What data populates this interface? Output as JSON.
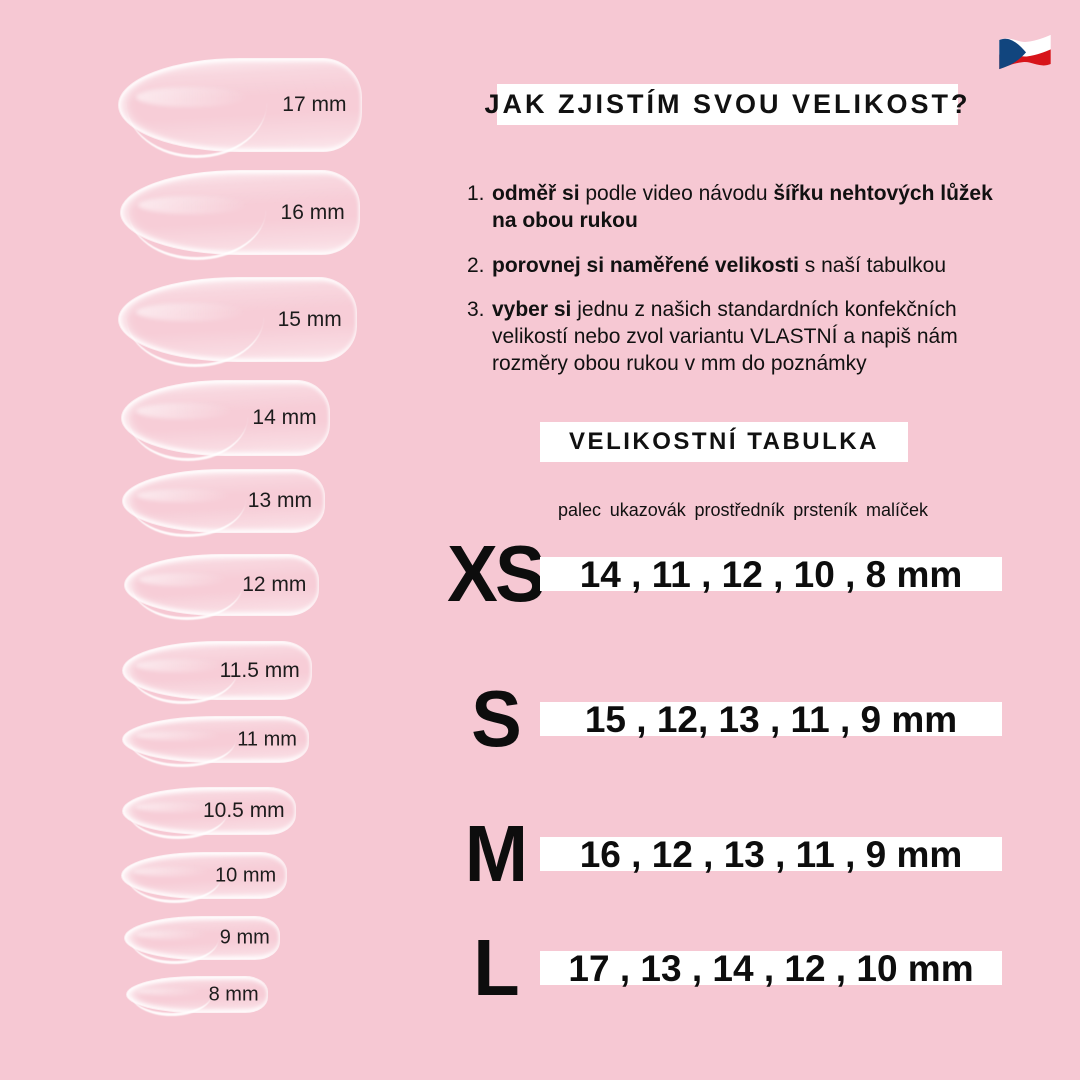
{
  "page": {
    "background_color": "#f6c8d3",
    "text_color": "#111111",
    "box_color": "#ffffff"
  },
  "flag": {
    "name": "czech-flag",
    "white": "#ffffff",
    "red": "#d7141a",
    "blue": "#11457e"
  },
  "nails": [
    {
      "label": "17 mm"
    },
    {
      "label": "16 mm"
    },
    {
      "label": "15 mm"
    },
    {
      "label": "14 mm"
    },
    {
      "label": "13 mm"
    },
    {
      "label": "12 mm"
    },
    {
      "label": "11.5 mm"
    },
    {
      "label": "11 mm"
    },
    {
      "label": "10.5 mm"
    },
    {
      "label": "10 mm"
    },
    {
      "label": "9 mm"
    },
    {
      "label": "8 mm"
    }
  ],
  "instructions": {
    "title": "JAK ZJISTÍM SVOU VELIKOST?",
    "items": [
      {
        "number": "1.",
        "segments": [
          {
            "text": "odměř si",
            "bold": true
          },
          {
            "text": " podle video návodu ",
            "bold": false
          },
          {
            "text": "šířku nehtových lůžek na obou rukou",
            "bold": true
          }
        ]
      },
      {
        "number": "2.",
        "segments": [
          {
            "text": "porovnej si naměřené velikosti",
            "bold": true
          },
          {
            "text": " s naší tabulkou",
            "bold": false
          }
        ]
      },
      {
        "number": "3.",
        "segments": [
          {
            "text": "vyber si",
            "bold": true
          },
          {
            "text": " jednu z našich standardních konfekčních velikostí nebo zvol variantu VLASTNÍ a napiš nám rozměry obou rukou v mm do poznámky",
            "bold": false
          }
        ]
      }
    ]
  },
  "size_table": {
    "title": "VELIKOSTNÍ TABULKA",
    "finger_headers": [
      "palec",
      "ukazovák",
      "prostředník",
      "prsteník",
      "malíček"
    ],
    "rows": [
      {
        "size": "XS",
        "values": "14 , 11 , 12 , 10 , 8 mm"
      },
      {
        "size": "S",
        "values": "15 , 12, 13 , 11 , 9 mm"
      },
      {
        "size": "M",
        "values": "16 , 12 , 13 , 11 , 9 mm"
      },
      {
        "size": "L",
        "values": "17 , 13 , 14 , 12 , 10 mm"
      }
    ]
  },
  "chart_data": {
    "type": "table",
    "title": "VELIKOSTNÍ TABULKA",
    "columns": [
      "palec",
      "ukazovák",
      "prostředník",
      "prsteník",
      "malíček"
    ],
    "unit": "mm",
    "rows": [
      {
        "size": "XS",
        "values": [
          14,
          11,
          12,
          10,
          8
        ]
      },
      {
        "size": "S",
        "values": [
          15,
          12,
          13,
          11,
          9
        ]
      },
      {
        "size": "M",
        "values": [
          16,
          12,
          13,
          11,
          9
        ]
      },
      {
        "size": "L",
        "values": [
          17,
          13,
          14,
          12,
          10
        ]
      }
    ],
    "nail_tip_lengths_mm": [
      17,
      16,
      15,
      14,
      13,
      12,
      11.5,
      11,
      10.5,
      10,
      9,
      8
    ]
  }
}
